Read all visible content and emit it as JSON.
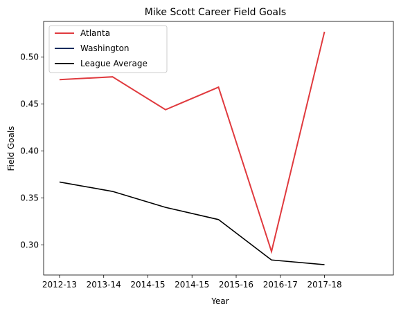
{
  "chart_data": {
    "type": "line",
    "title": "Mike Scott  Career Field Goals",
    "xlabel": "Year",
    "ylabel": "Field Goals",
    "x_tick_labels": [
      "2012-13",
      "2013-14",
      "2014-15",
      "2014-15",
      "2015-16",
      "2016-17",
      "2017-18"
    ],
    "x_range": [
      -0.3,
      6.3
    ],
    "ylim": [
      0.268,
      0.538
    ],
    "y_ticks": [
      0.3,
      0.35,
      0.4,
      0.45,
      0.5
    ],
    "y_tick_labels": [
      "0.30",
      "0.35",
      "0.40",
      "0.45",
      "0.50"
    ],
    "grid": false,
    "legend_position": "upper-left",
    "series": [
      {
        "name": "Atlanta",
        "color": "#e03a3e",
        "points": [
          [
            0,
            0.476
          ],
          [
            1,
            0.479
          ],
          [
            2,
            0.444
          ],
          [
            3,
            0.468
          ],
          [
            4,
            0.293
          ],
          [
            5,
            0.527
          ]
        ]
      },
      {
        "name": "Washington",
        "color": "#002b5c",
        "points": []
      },
      {
        "name": "League Average",
        "color": "#000000",
        "points": [
          [
            0,
            0.367
          ],
          [
            1,
            0.357
          ],
          [
            2,
            0.34
          ],
          [
            3,
            0.327
          ],
          [
            4,
            0.284
          ],
          [
            5,
            0.279
          ]
        ]
      }
    ]
  }
}
